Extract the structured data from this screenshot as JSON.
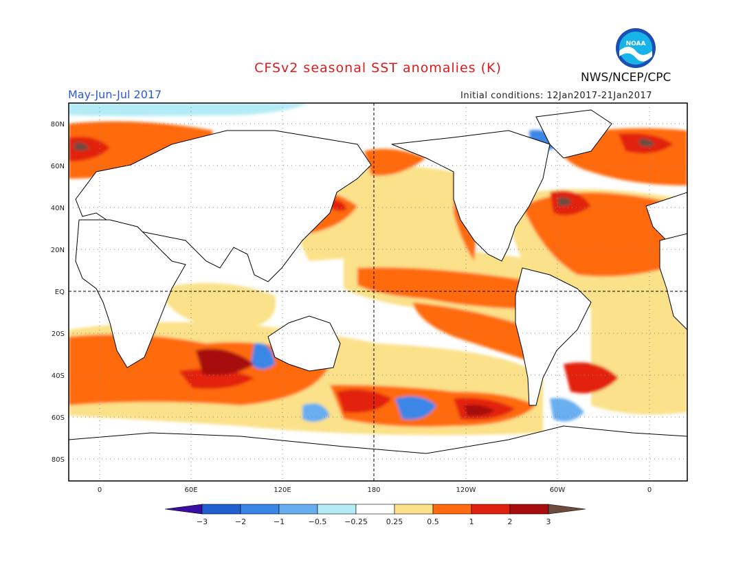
{
  "header": {
    "title": "CFSv2 seasonal SST anomalies (K)",
    "agency": "NWS/NCEP/CPC",
    "logo_text": "NOAA",
    "season": "May-Jun-Jul 2017",
    "initial_conditions": "Initial conditions: 12Jan2017-21Jan2017"
  },
  "axes": {
    "lat_labels": [
      "80N",
      "60N",
      "40N",
      "20N",
      "EQ",
      "20S",
      "40S",
      "60S",
      "80S"
    ],
    "lon_labels": [
      "0",
      "60E",
      "120E",
      "180",
      "120W",
      "60W",
      "0"
    ]
  },
  "colorbar": {
    "levels": [
      "-3",
      "-2",
      "-1",
      "-0.5",
      "-0.25",
      "0.25",
      "0.5",
      "1",
      "2",
      "3"
    ],
    "colors": [
      "#3b0ea3",
      "#1f5fd0",
      "#3a86e6",
      "#67aef0",
      "#b4ecf5",
      "#ffffff",
      "#fbe189",
      "#ff6a10",
      "#e2200f",
      "#a80d0d",
      "#6e4b3f"
    ]
  },
  "colors": {
    "land": "#ffffff",
    "coast": "#000000",
    "grid": "#888888",
    "title": "#e0191b",
    "season": "#2a5bd7"
  }
}
